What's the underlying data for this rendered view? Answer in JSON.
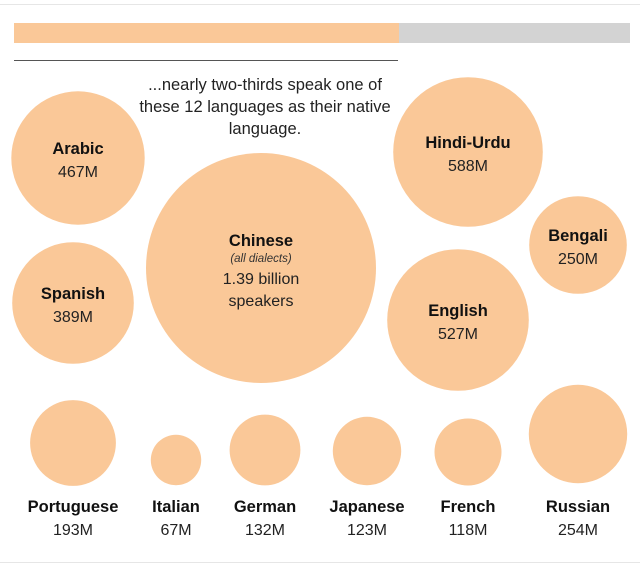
{
  "caption": "...nearly two-thirds speak one of these 12 languages as their native language.",
  "progress": {
    "fraction": 0.625,
    "fill_color": "#fac898",
    "track_color": "#d3d3d3"
  },
  "bubble_color": "#fac898",
  "chart_data": {
    "type": "bubble",
    "unit": "millions of native speakers",
    "series": [
      {
        "name": "Chinese",
        "note": "(all dialects)",
        "label": "1.39 billion",
        "label2": "speakers",
        "value": 1390
      },
      {
        "name": "Hindi-Urdu",
        "label": "588M",
        "value": 588
      },
      {
        "name": "English",
        "label": "527M",
        "value": 527
      },
      {
        "name": "Arabic",
        "label": "467M",
        "value": 467
      },
      {
        "name": "Spanish",
        "label": "389M",
        "value": 389
      },
      {
        "name": "Bengali",
        "label": "250M",
        "value": 250
      },
      {
        "name": "Portuguese",
        "label": "193M",
        "value": 193
      },
      {
        "name": "Italian",
        "label": "67M",
        "value": 67
      },
      {
        "name": "German",
        "label": "132M",
        "value": 132
      },
      {
        "name": "Japanese",
        "label": "123M",
        "value": 123
      },
      {
        "name": "French",
        "label": "118M",
        "value": 118
      },
      {
        "name": "Russian",
        "label": "254M",
        "value": 254
      }
    ]
  }
}
